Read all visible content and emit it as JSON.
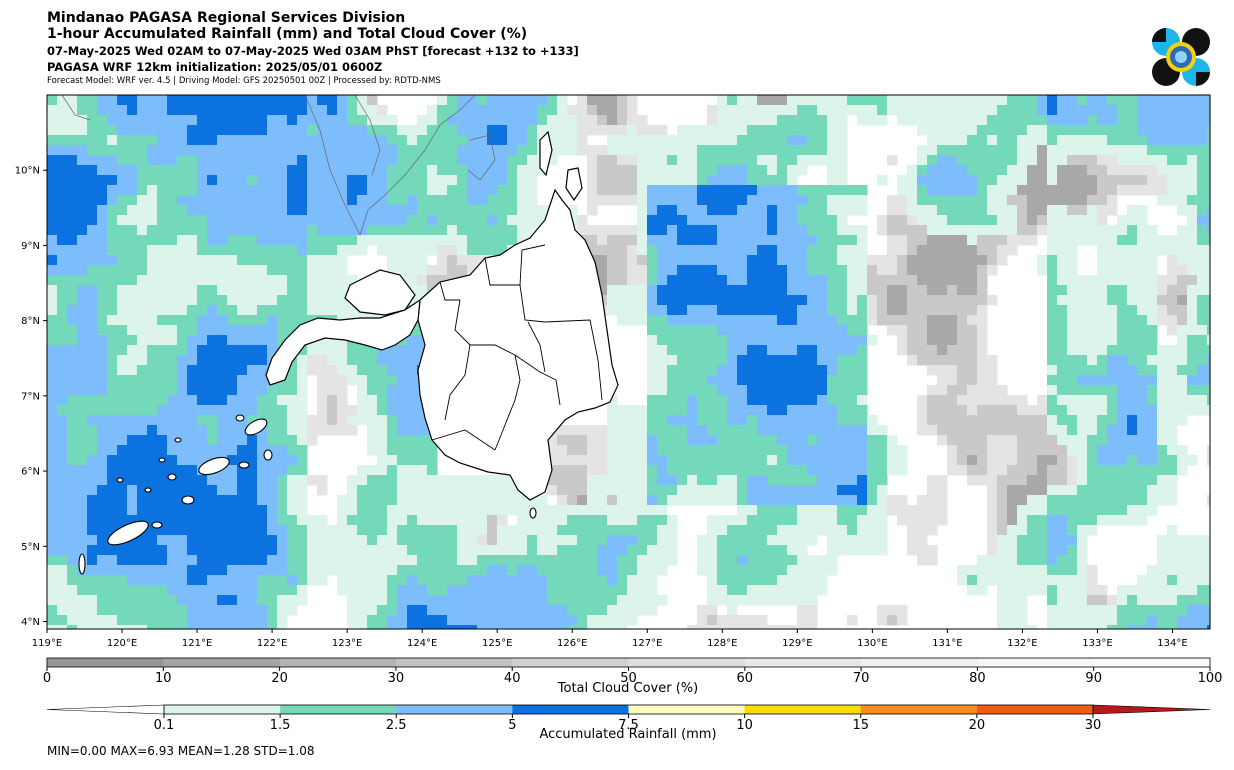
{
  "header": {
    "title_line1": "Mindanao PAGASA Regional Services Division",
    "title_line2": "1-hour Accumulated Rainfall (mm) and Total Cloud Cover (%)",
    "title_line3": "07-May-2025 Wed 02AM to 07-May-2025 Wed 03AM PhST [forecast +132 to +133]",
    "title_line4": "PAGASA WRF 12km initialization: 2025/05/01 0600Z",
    "title_line5": "Forecast Model: WRF ver. 4.5 | Driving Model: GFS 20250501 00Z | Processed by: RDTD-NMS"
  },
  "logo": {
    "name": "pagasa-logo",
    "colors": [
      "#1fb5e8",
      "#111111",
      "#f6d20c",
      "#2e6bb5"
    ]
  },
  "map": {
    "lon_range": [
      119,
      134.5
    ],
    "lat_range": [
      3.9,
      11
    ],
    "lon_ticks": [
      "119°E",
      "120°E",
      "121°E",
      "122°E",
      "123°E",
      "124°E",
      "125°E",
      "126°E",
      "127°E",
      "128°E",
      "129°E",
      "130°E",
      "131°E",
      "132°E",
      "133°E",
      "134°E"
    ],
    "lat_ticks": [
      "4°N",
      "5°N",
      "6°N",
      "7°N",
      "8°N",
      "9°N",
      "10°N"
    ],
    "lon_tick_values": [
      119,
      120,
      121,
      122,
      123,
      124,
      125,
      126,
      127,
      128,
      129,
      130,
      131,
      132,
      133,
      134
    ],
    "lat_tick_values": [
      4,
      5,
      6,
      7,
      8,
      9,
      10
    ]
  },
  "cloud_colorbar": {
    "title": "Total Cloud Cover (%)",
    "ticks": [
      "0",
      "10",
      "20",
      "30",
      "40",
      "50",
      "60",
      "70",
      "80",
      "90",
      "100"
    ],
    "colors": [
      "#959595",
      "#a4a4a4",
      "#b3b3b3",
      "#c2c2c2",
      "#d1d1d1",
      "#dedede",
      "#e8e8e8",
      "#f0f0f0",
      "#f6f6f6",
      "#fbfbfb"
    ]
  },
  "rain_colorbar": {
    "title": "Accumulated Rainfall (mm)",
    "ticks": [
      "0.1",
      "1.5",
      "2.5",
      "5",
      "7.5",
      "10",
      "15",
      "20",
      "30"
    ],
    "colors": [
      "#ffffff",
      "#dcf4ea",
      "#74d9bb",
      "#7ebdfb",
      "#0b72e0",
      "#fefdbe",
      "#f7dc08",
      "#f48e21",
      "#ef5d14",
      "#b41a1a"
    ]
  },
  "stats": {
    "text": "MIN=0.00   MAX=6.93   MEAN=1.28   STD=1.08"
  },
  "rain_field_colors": {
    "light": "#dcf4ea",
    "teal": "#74d9bb",
    "lightblue": "#7ebdfb",
    "blue": "#0b72e0",
    "cloud_dark": "#a8a8a8",
    "cloud_mid": "#c9c9c9",
    "cloud_light": "#e4e4e4"
  }
}
